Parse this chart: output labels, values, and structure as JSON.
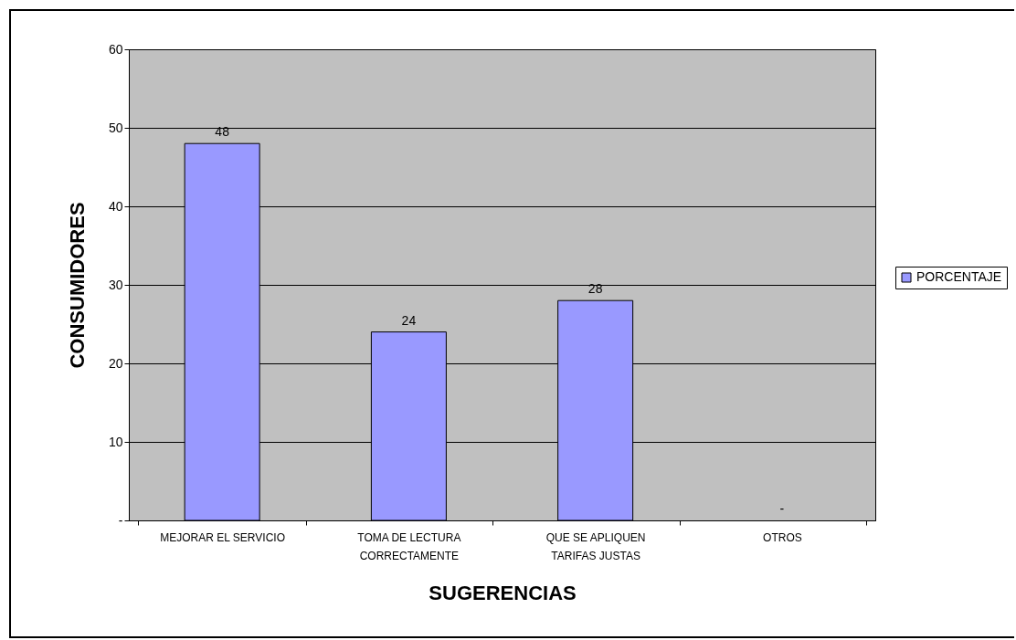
{
  "chart_data": {
    "type": "bar",
    "xlabel": "SUGERENCIAS",
    "ylabel": "CONSUMIDORES",
    "categories": [
      "MEJORAR EL SERVICIO",
      "TOMA DE LECTURA CORRECTAMENTE",
      "QUE SE APLIQUEN TARIFAS JUSTAS",
      "OTROS"
    ],
    "series": [
      {
        "name": "PORCENTAJE",
        "color": "#9999ff",
        "values": [
          48,
          24,
          28,
          0
        ],
        "value_labels": [
          "48",
          "24",
          "28",
          "-"
        ]
      }
    ],
    "ylim": [
      0,
      60
    ],
    "yticks": [
      {
        "value": 0,
        "label": "-"
      },
      10,
      20,
      30,
      40,
      50,
      60
    ],
    "grid": "y",
    "legend": "right"
  }
}
